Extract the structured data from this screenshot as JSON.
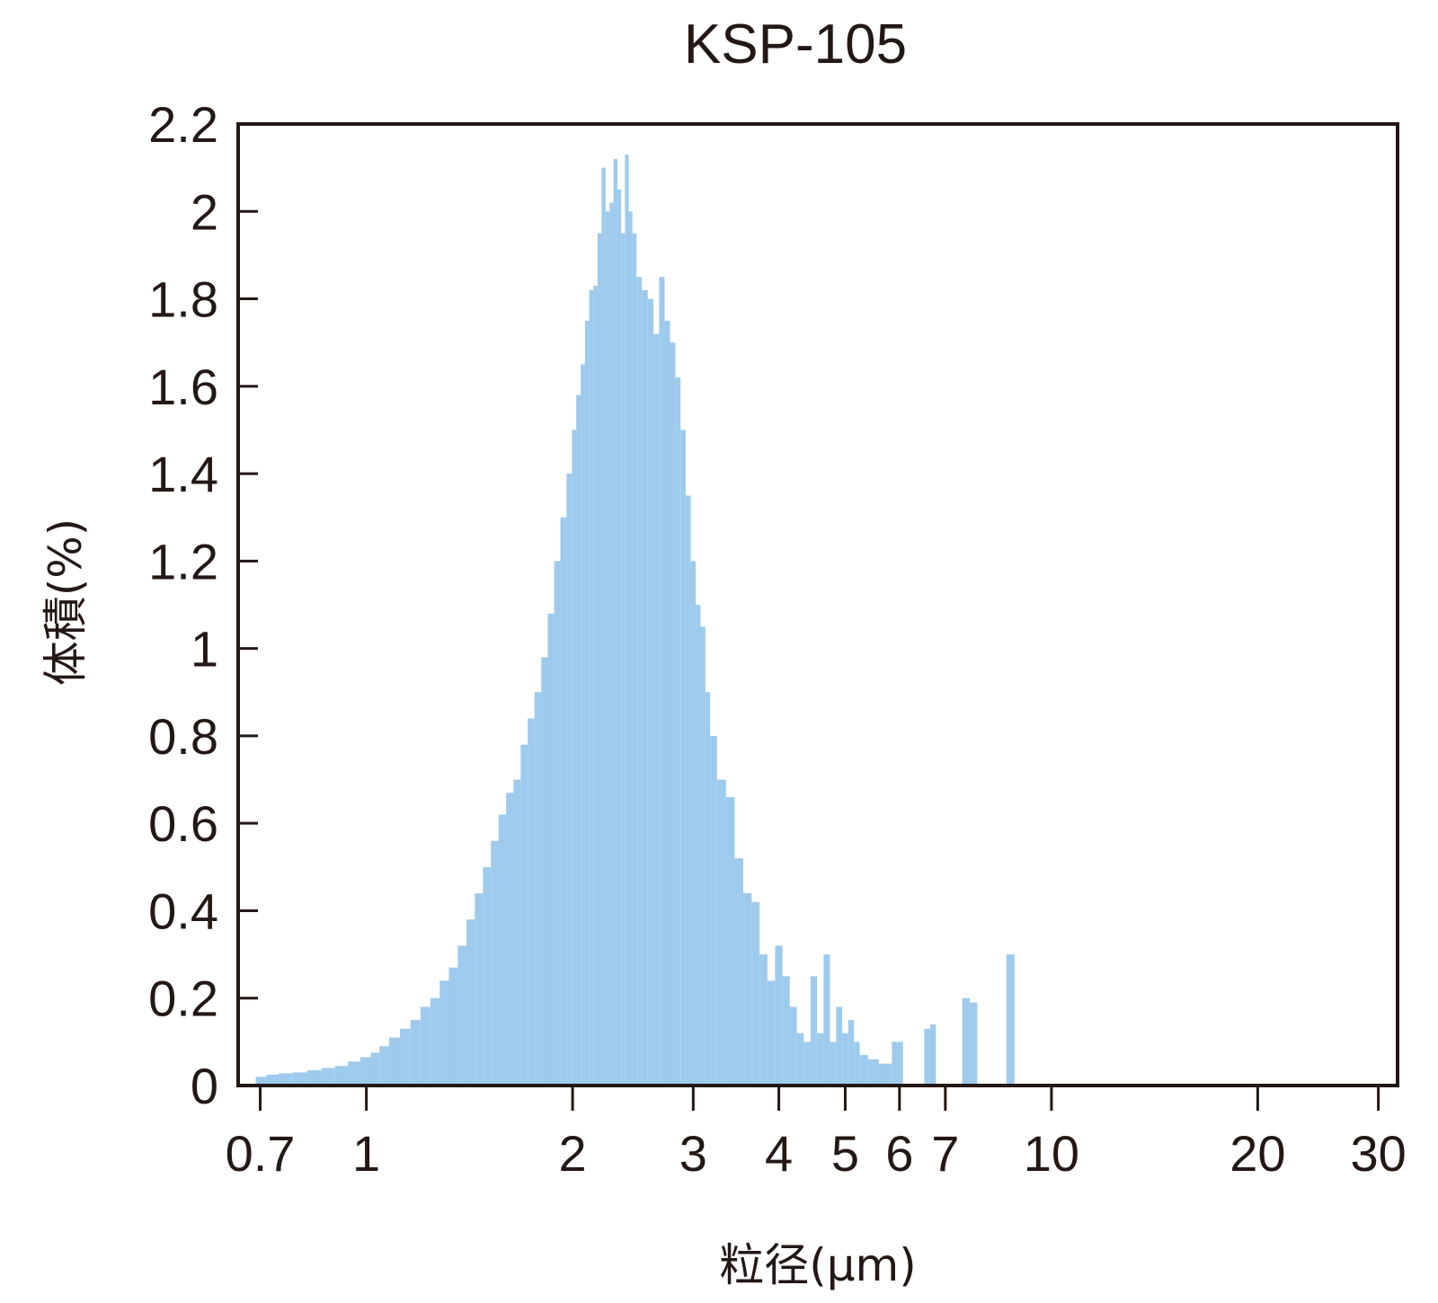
{
  "chart_data": {
    "type": "bar",
    "title": "KSP-105",
    "xlabel": "粒径(μm)",
    "ylabel": "体積(%)",
    "x_scale": "log",
    "xlim": [
      0.65,
      32
    ],
    "ylim": [
      0,
      2.2
    ],
    "x_ticks": [
      {
        "value": 0.7,
        "label": "0.7"
      },
      {
        "value": 1,
        "label": "1"
      },
      {
        "value": 2,
        "label": "2"
      },
      {
        "value": 3,
        "label": "3"
      },
      {
        "value": 4,
        "label": "4"
      },
      {
        "value": 5,
        "label": "5"
      },
      {
        "value": 6,
        "label": "6"
      },
      {
        "value": 7,
        "label": "7"
      },
      {
        "value": 10,
        "label": "10"
      },
      {
        "value": 20,
        "label": "20"
      },
      {
        "value": 30,
        "label": "30"
      }
    ],
    "y_ticks": [
      {
        "value": 0,
        "label": "0"
      },
      {
        "value": 0.2,
        "label": "0.2"
      },
      {
        "value": 0.4,
        "label": "0.4"
      },
      {
        "value": 0.6,
        "label": "0.6"
      },
      {
        "value": 0.8,
        "label": "0.8"
      },
      {
        "value": 1,
        "label": "1"
      },
      {
        "value": 1.2,
        "label": "1.2"
      },
      {
        "value": 1.4,
        "label": "1.4"
      },
      {
        "value": 1.6,
        "label": "1.6"
      },
      {
        "value": 1.8,
        "label": "1.8"
      },
      {
        "value": 2,
        "label": "2"
      },
      {
        "value": 2.2,
        "label": "2.2"
      }
    ],
    "grid": false,
    "legend": "none",
    "bar_color": "#9ecbed",
    "x": [
      0.7,
      0.73,
      0.76,
      0.8,
      0.84,
      0.88,
      0.92,
      0.96,
      1.0,
      1.03,
      1.06,
      1.1,
      1.14,
      1.18,
      1.22,
      1.26,
      1.3,
      1.34,
      1.38,
      1.42,
      1.46,
      1.5,
      1.54,
      1.58,
      1.62,
      1.66,
      1.7,
      1.74,
      1.78,
      1.82,
      1.86,
      1.9,
      1.94,
      1.98,
      2.01,
      2.04,
      2.07,
      2.1,
      2.13,
      2.16,
      2.19,
      2.22,
      2.25,
      2.28,
      2.31,
      2.34,
      2.37,
      2.4,
      2.43,
      2.46,
      2.5,
      2.55,
      2.6,
      2.65,
      2.7,
      2.75,
      2.8,
      2.85,
      2.9,
      2.95,
      3.0,
      3.05,
      3.1,
      3.15,
      3.2,
      3.3,
      3.4,
      3.5,
      3.6,
      3.7,
      3.8,
      3.9,
      4.0,
      4.1,
      4.2,
      4.3,
      4.4,
      4.5,
      4.6,
      4.7,
      4.8,
      4.9,
      5.0,
      5.1,
      5.2,
      5.3,
      5.5,
      5.7,
      6.0,
      6.6,
      6.7,
      7.5,
      7.7,
      8.7
    ],
    "values": [
      0.02,
      0.025,
      0.028,
      0.03,
      0.035,
      0.04,
      0.045,
      0.055,
      0.065,
      0.075,
      0.09,
      0.11,
      0.13,
      0.15,
      0.18,
      0.2,
      0.24,
      0.27,
      0.32,
      0.38,
      0.44,
      0.5,
      0.56,
      0.62,
      0.67,
      0.7,
      0.78,
      0.84,
      0.9,
      0.98,
      1.08,
      1.2,
      1.3,
      1.4,
      1.5,
      1.58,
      1.65,
      1.75,
      1.82,
      1.83,
      1.95,
      2.1,
      2.0,
      2.02,
      2.12,
      2.05,
      1.95,
      2.13,
      2.0,
      1.95,
      1.85,
      1.82,
      1.8,
      1.72,
      1.85,
      1.75,
      1.7,
      1.62,
      1.5,
      1.35,
      1.2,
      1.1,
      1.05,
      0.9,
      0.8,
      0.7,
      0.66,
      0.52,
      0.44,
      0.42,
      0.3,
      0.24,
      0.32,
      0.25,
      0.18,
      0.12,
      0.1,
      0.25,
      0.12,
      0.3,
      0.1,
      0.18,
      0.12,
      0.15,
      0.1,
      0.07,
      0.06,
      0.05,
      0.1,
      0.13,
      0.14,
      0.2,
      0.19,
      0.3
    ]
  }
}
